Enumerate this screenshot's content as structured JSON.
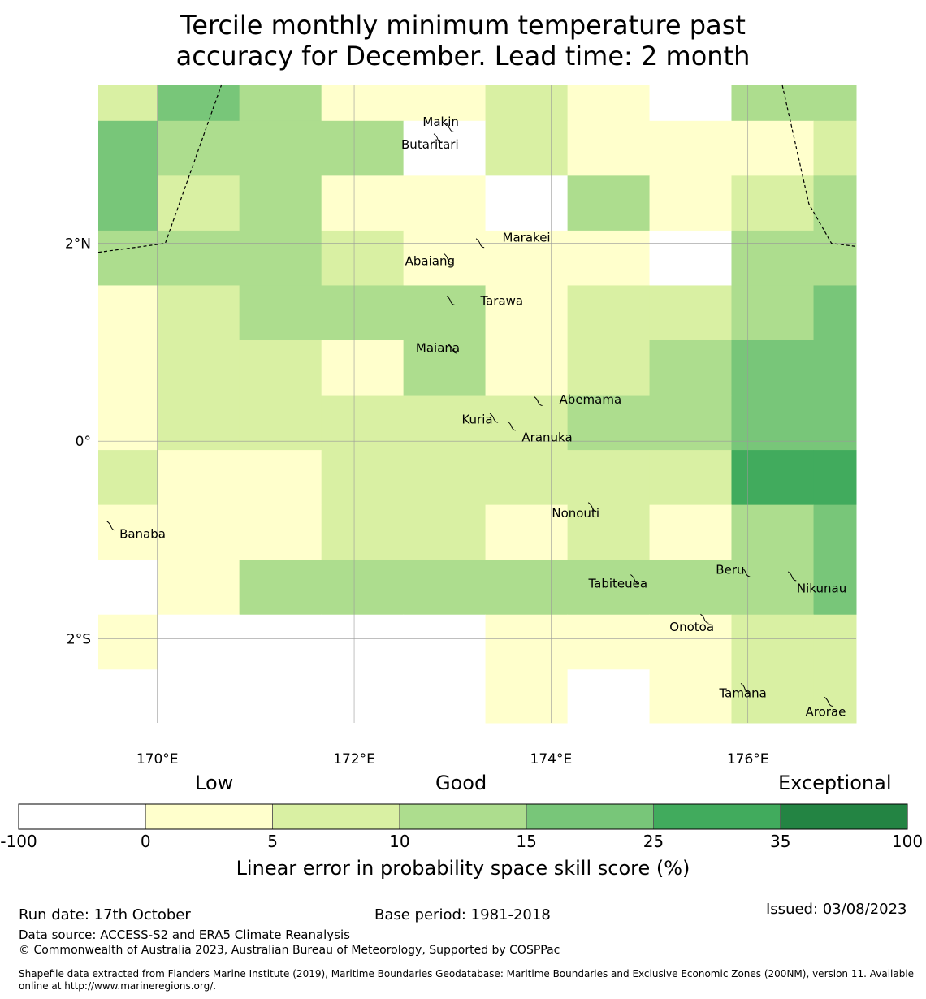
{
  "title": {
    "line1": "Tercile monthly minimum temperature past",
    "line2": "accuracy for December. Lead time: 2 month"
  },
  "map": {
    "lon_range": [
      169.4,
      177.1
    ],
    "lat_range": [
      -2.85,
      3.6
    ],
    "lon_ticks": [
      {
        "value": 170,
        "label": "170°E"
      },
      {
        "value": 172,
        "label": "172°E"
      },
      {
        "value": 174,
        "label": "174°E"
      },
      {
        "value": 176,
        "label": "176°E"
      }
    ],
    "lat_ticks": [
      {
        "value": 2,
        "label": "2°N"
      },
      {
        "value": 0,
        "label": "0°"
      },
      {
        "value": -2,
        "label": "2°S"
      }
    ],
    "grid_cols_lon": [
      169.4,
      170.0,
      170.833,
      171.667,
      172.5,
      173.333,
      174.167,
      175.0,
      175.833,
      176.667,
      177.1
    ],
    "grid_rows_lat": [
      3.6,
      3.24,
      2.685,
      2.13,
      1.575,
      1.02,
      0.465,
      -0.09,
      -0.645,
      -1.2,
      -1.755,
      -2.31,
      -2.85
    ],
    "skill_classes": [
      [
        2,
        4,
        3,
        1,
        1,
        2,
        1,
        0,
        3,
        3
      ],
      [
        4,
        3,
        3,
        3,
        0,
        2,
        1,
        1,
        1,
        2
      ],
      [
        4,
        2,
        3,
        1,
        1,
        0,
        3,
        1,
        2,
        3
      ],
      [
        3,
        3,
        3,
        2,
        1,
        1,
        1,
        0,
        3,
        3
      ],
      [
        1,
        2,
        3,
        3,
        3,
        1,
        2,
        2,
        3,
        4
      ],
      [
        1,
        2,
        2,
        1,
        3,
        1,
        2,
        3,
        4,
        4
      ],
      [
        1,
        2,
        2,
        2,
        2,
        2,
        3,
        3,
        4,
        4
      ],
      [
        2,
        1,
        1,
        2,
        2,
        2,
        2,
        2,
        5,
        5
      ],
      [
        1,
        1,
        1,
        2,
        2,
        1,
        2,
        1,
        3,
        4
      ],
      [
        0,
        1,
        3,
        3,
        3,
        3,
        3,
        3,
        3,
        4
      ],
      [
        1,
        0,
        0,
        0,
        0,
        1,
        1,
        1,
        2,
        2
      ],
      [
        0,
        0,
        0,
        0,
        0,
        1,
        0,
        1,
        2,
        2
      ]
    ],
    "eez_boundary_west": [
      [
        169.4,
        1.91
      ],
      [
        170.08,
        2.0
      ],
      [
        170.65,
        3.6
      ]
    ],
    "eez_boundary_east": [
      [
        176.35,
        3.6
      ],
      [
        176.62,
        2.4
      ],
      [
        176.85,
        2.0
      ],
      [
        177.1,
        1.97
      ]
    ],
    "islands": [
      {
        "name": "Makin",
        "lon": 172.97,
        "lat": 3.17,
        "label_lon": 172.88,
        "label_lat": 3.23
      },
      {
        "name": "Butaritari",
        "lon": 172.85,
        "lat": 3.06,
        "label_lon": 172.77,
        "label_lat": 3.0
      },
      {
        "name": "Marakei",
        "lon": 173.28,
        "lat": 2.0,
        "label_lon": 173.75,
        "label_lat": 2.06
      },
      {
        "name": "Abaiang",
        "lon": 172.95,
        "lat": 1.85,
        "label_lon": 172.77,
        "label_lat": 1.82
      },
      {
        "name": "Tarawa",
        "lon": 172.98,
        "lat": 1.42,
        "label_lon": 173.5,
        "label_lat": 1.42
      },
      {
        "name": "Maiana",
        "lon": 173.0,
        "lat": 0.93,
        "label_lon": 172.85,
        "label_lat": 0.94
      },
      {
        "name": "Abemama",
        "lon": 173.87,
        "lat": 0.4,
        "label_lon": 174.4,
        "label_lat": 0.42
      },
      {
        "name": "Kuria",
        "lon": 173.42,
        "lat": 0.23,
        "label_lon": 173.25,
        "label_lat": 0.22
      },
      {
        "name": "Aranuka",
        "lon": 173.6,
        "lat": 0.15,
        "label_lon": 173.96,
        "label_lat": 0.04
      },
      {
        "name": "Nonouti",
        "lon": 174.42,
        "lat": -0.67,
        "label_lon": 174.25,
        "label_lat": -0.73
      },
      {
        "name": "Banaba",
        "lon": 169.53,
        "lat": -0.86,
        "label_lon": 169.85,
        "label_lat": -0.94
      },
      {
        "name": "Beru",
        "lon": 175.98,
        "lat": -1.33,
        "label_lon": 175.82,
        "label_lat": -1.3
      },
      {
        "name": "Nikunau",
        "lon": 176.45,
        "lat": -1.37,
        "label_lon": 176.75,
        "label_lat": -1.49
      },
      {
        "name": "Tabiteuea",
        "lon": 174.85,
        "lat": -1.4,
        "label_lon": 174.68,
        "label_lat": -1.44
      },
      {
        "name": "Onotoa",
        "lon": 175.56,
        "lat": -1.8,
        "label_lon": 175.43,
        "label_lat": -1.88
      },
      {
        "name": "Tamana",
        "lon": 175.97,
        "lat": -2.5,
        "label_lon": 175.95,
        "label_lat": -2.55
      },
      {
        "name": "Arorae",
        "lon": 176.82,
        "lat": -2.64,
        "label_lon": 176.79,
        "label_lat": -2.74
      }
    ]
  },
  "colorbar": {
    "words": {
      "low": "Low",
      "good": "Good",
      "exceptional": "Exceptional"
    },
    "ticks": [
      "-100",
      "0",
      "5",
      "10",
      "15",
      "25",
      "35",
      "100"
    ],
    "colors": [
      "#ffffff",
      "#ffffcc",
      "#d9f0a3",
      "#addd8e",
      "#78c679",
      "#41ab5d",
      "#238443"
    ],
    "label": "Linear error in probability space skill score (%)"
  },
  "footer": {
    "run_date": "Run date: 17th October",
    "base_period": "Base period: 1981-2018",
    "issued": "Issued: 03/08/2023",
    "data_source": "Data source: ACCESS-S2 and ERA5 Climate Reanalysis",
    "copyright": "© Commonwealth of Australia 2023, Australian Bureau of Meteorology, Supported by COSPPac",
    "shapefile_line1": "Shapefile data extracted from Flanders Marine Institute (2019), Maritime Boundaries Geodatabase: Maritime Boundaries and Exclusive Economic Zones (200NM), version 11. Available",
    "shapefile_line2": "online at http://www.marineregions.org/."
  }
}
